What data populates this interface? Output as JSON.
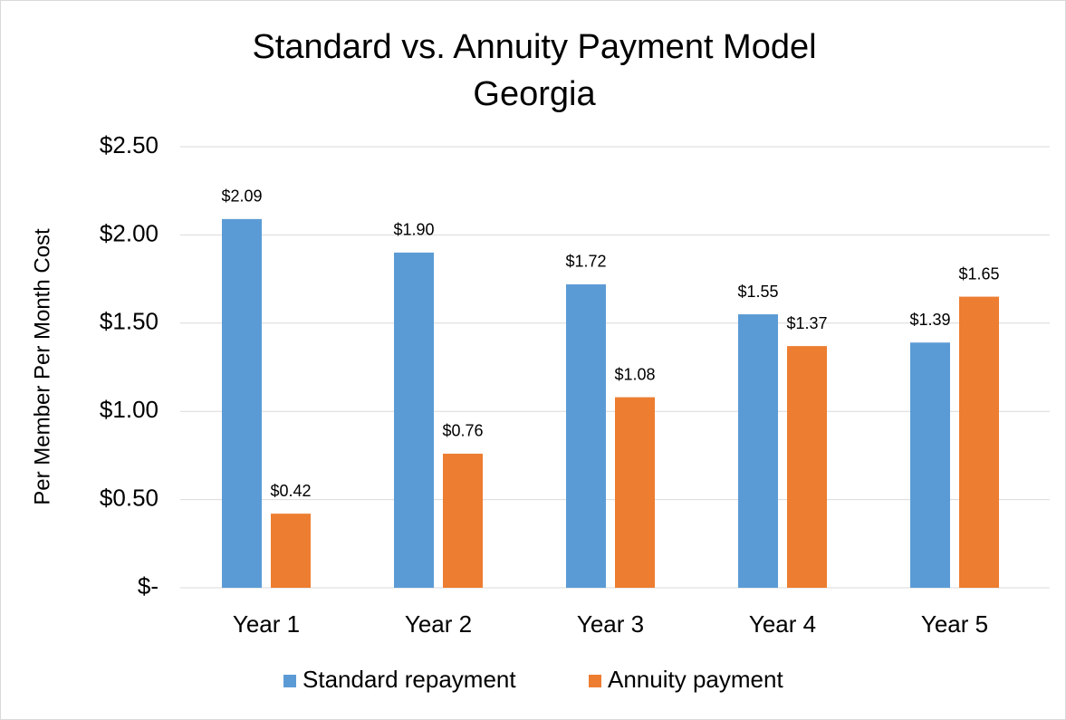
{
  "chart_data": {
    "type": "bar",
    "title": "Standard vs. Annuity Payment Model",
    "subtitle": "Georgia",
    "y_label": "Per Member Per Month Cost",
    "categories": [
      "Year 1",
      "Year 2",
      "Year 3",
      "Year 4",
      "Year 5"
    ],
    "series": [
      {
        "name": "Standard repayment",
        "color": "#5b9bd5",
        "values": [
          2.09,
          1.9,
          1.72,
          1.55,
          1.39
        ],
        "value_labels": [
          "$2.09",
          "$1.90",
          "$1.72",
          "$1.55",
          "$1.39"
        ]
      },
      {
        "name": "Annuity payment",
        "color": "#ed7d31",
        "values": [
          0.42,
          0.76,
          1.08,
          1.37,
          1.65
        ],
        "value_labels": [
          "$0.42",
          "$0.76",
          "$1.08",
          "$1.37",
          "$1.65"
        ]
      }
    ],
    "ylim": [
      0,
      2.5
    ],
    "yticks": [
      {
        "value": 0,
        "label": "$-"
      },
      {
        "value": 0.5,
        "label": "$0.50"
      },
      {
        "value": 1,
        "label": "$1.00"
      },
      {
        "value": 1.5,
        "label": "$1.50"
      },
      {
        "value": 2,
        "label": "$2.00"
      },
      {
        "value": 2.5,
        "label": "$2.50"
      }
    ],
    "grid": true,
    "legend": "bottom"
  }
}
